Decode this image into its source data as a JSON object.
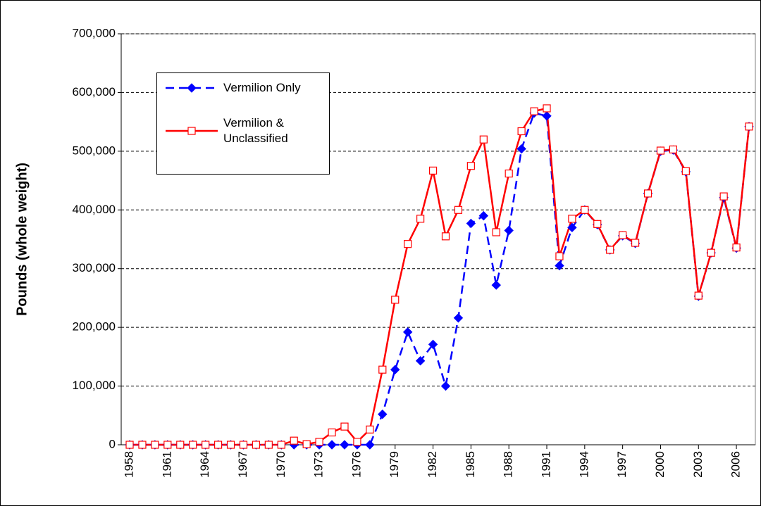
{
  "chart_data": {
    "type": "line",
    "y_label": "Pounds (whole weight)",
    "x": [
      1958,
      1959,
      1960,
      1961,
      1962,
      1963,
      1964,
      1965,
      1966,
      1967,
      1968,
      1969,
      1970,
      1971,
      1972,
      1973,
      1974,
      1975,
      1976,
      1977,
      1978,
      1979,
      1980,
      1981,
      1982,
      1983,
      1984,
      1985,
      1986,
      1987,
      1988,
      1989,
      1990,
      1991,
      1992,
      1993,
      1994,
      1995,
      1996,
      1997,
      1998,
      1999,
      2000,
      2001,
      2002,
      2003,
      2004,
      2005,
      2006,
      2007
    ],
    "series": [
      {
        "name": "Vermilion Only",
        "color": "#0000ff",
        "dashed": true,
        "marker": "diamond",
        "values": [
          0,
          0,
          0,
          0,
          0,
          0,
          0,
          0,
          0,
          0,
          0,
          0,
          0,
          0,
          0,
          0,
          0,
          0,
          0,
          0,
          52000,
          128000,
          192000,
          143000,
          171000,
          100000,
          216000,
          377000,
          390000,
          272000,
          365000,
          504000,
          565000,
          560000,
          305000,
          370000,
          400000,
          375000,
          332000,
          356000,
          343000,
          428000,
          500000,
          502000,
          465000,
          253000,
          327000,
          421000,
          335000,
          542000
        ]
      },
      {
        "name": "Vermilion & Unclassified",
        "color": "#ff0000",
        "dashed": false,
        "marker": "square",
        "values": [
          0,
          0,
          0,
          0,
          0,
          0,
          0,
          0,
          0,
          0,
          0,
          0,
          0,
          7000,
          1000,
          5000,
          21000,
          31000,
          5000,
          26000,
          128000,
          247000,
          342000,
          385000,
          467000,
          355000,
          400000,
          475000,
          520000,
          362000,
          462000,
          534000,
          568000,
          573000,
          321000,
          385000,
          400000,
          376000,
          332000,
          357000,
          344000,
          428000,
          501000,
          503000,
          466000,
          254000,
          327000,
          423000,
          336000,
          542000
        ]
      }
    ],
    "xlim": [
      1957.33,
      2007.5
    ],
    "xticks": [
      1958,
      1961,
      1964,
      1967,
      1970,
      1973,
      1976,
      1979,
      1982,
      1985,
      1988,
      1991,
      1994,
      1997,
      2000,
      2003,
      2006
    ],
    "ylim": [
      0,
      700000
    ],
    "yticks": [
      0,
      {
        "value": 100000,
        "label": "100,000"
      },
      {
        "value": 200000,
        "label": "200,000"
      },
      {
        "value": 300000,
        "label": "300,000"
      },
      {
        "value": 400000,
        "label": "400,000"
      },
      {
        "value": 500000,
        "label": "500,000"
      },
      {
        "value": 600000,
        "label": "600,000"
      },
      {
        "value": 700000,
        "label": "700,000"
      }
    ],
    "grid": true
  }
}
